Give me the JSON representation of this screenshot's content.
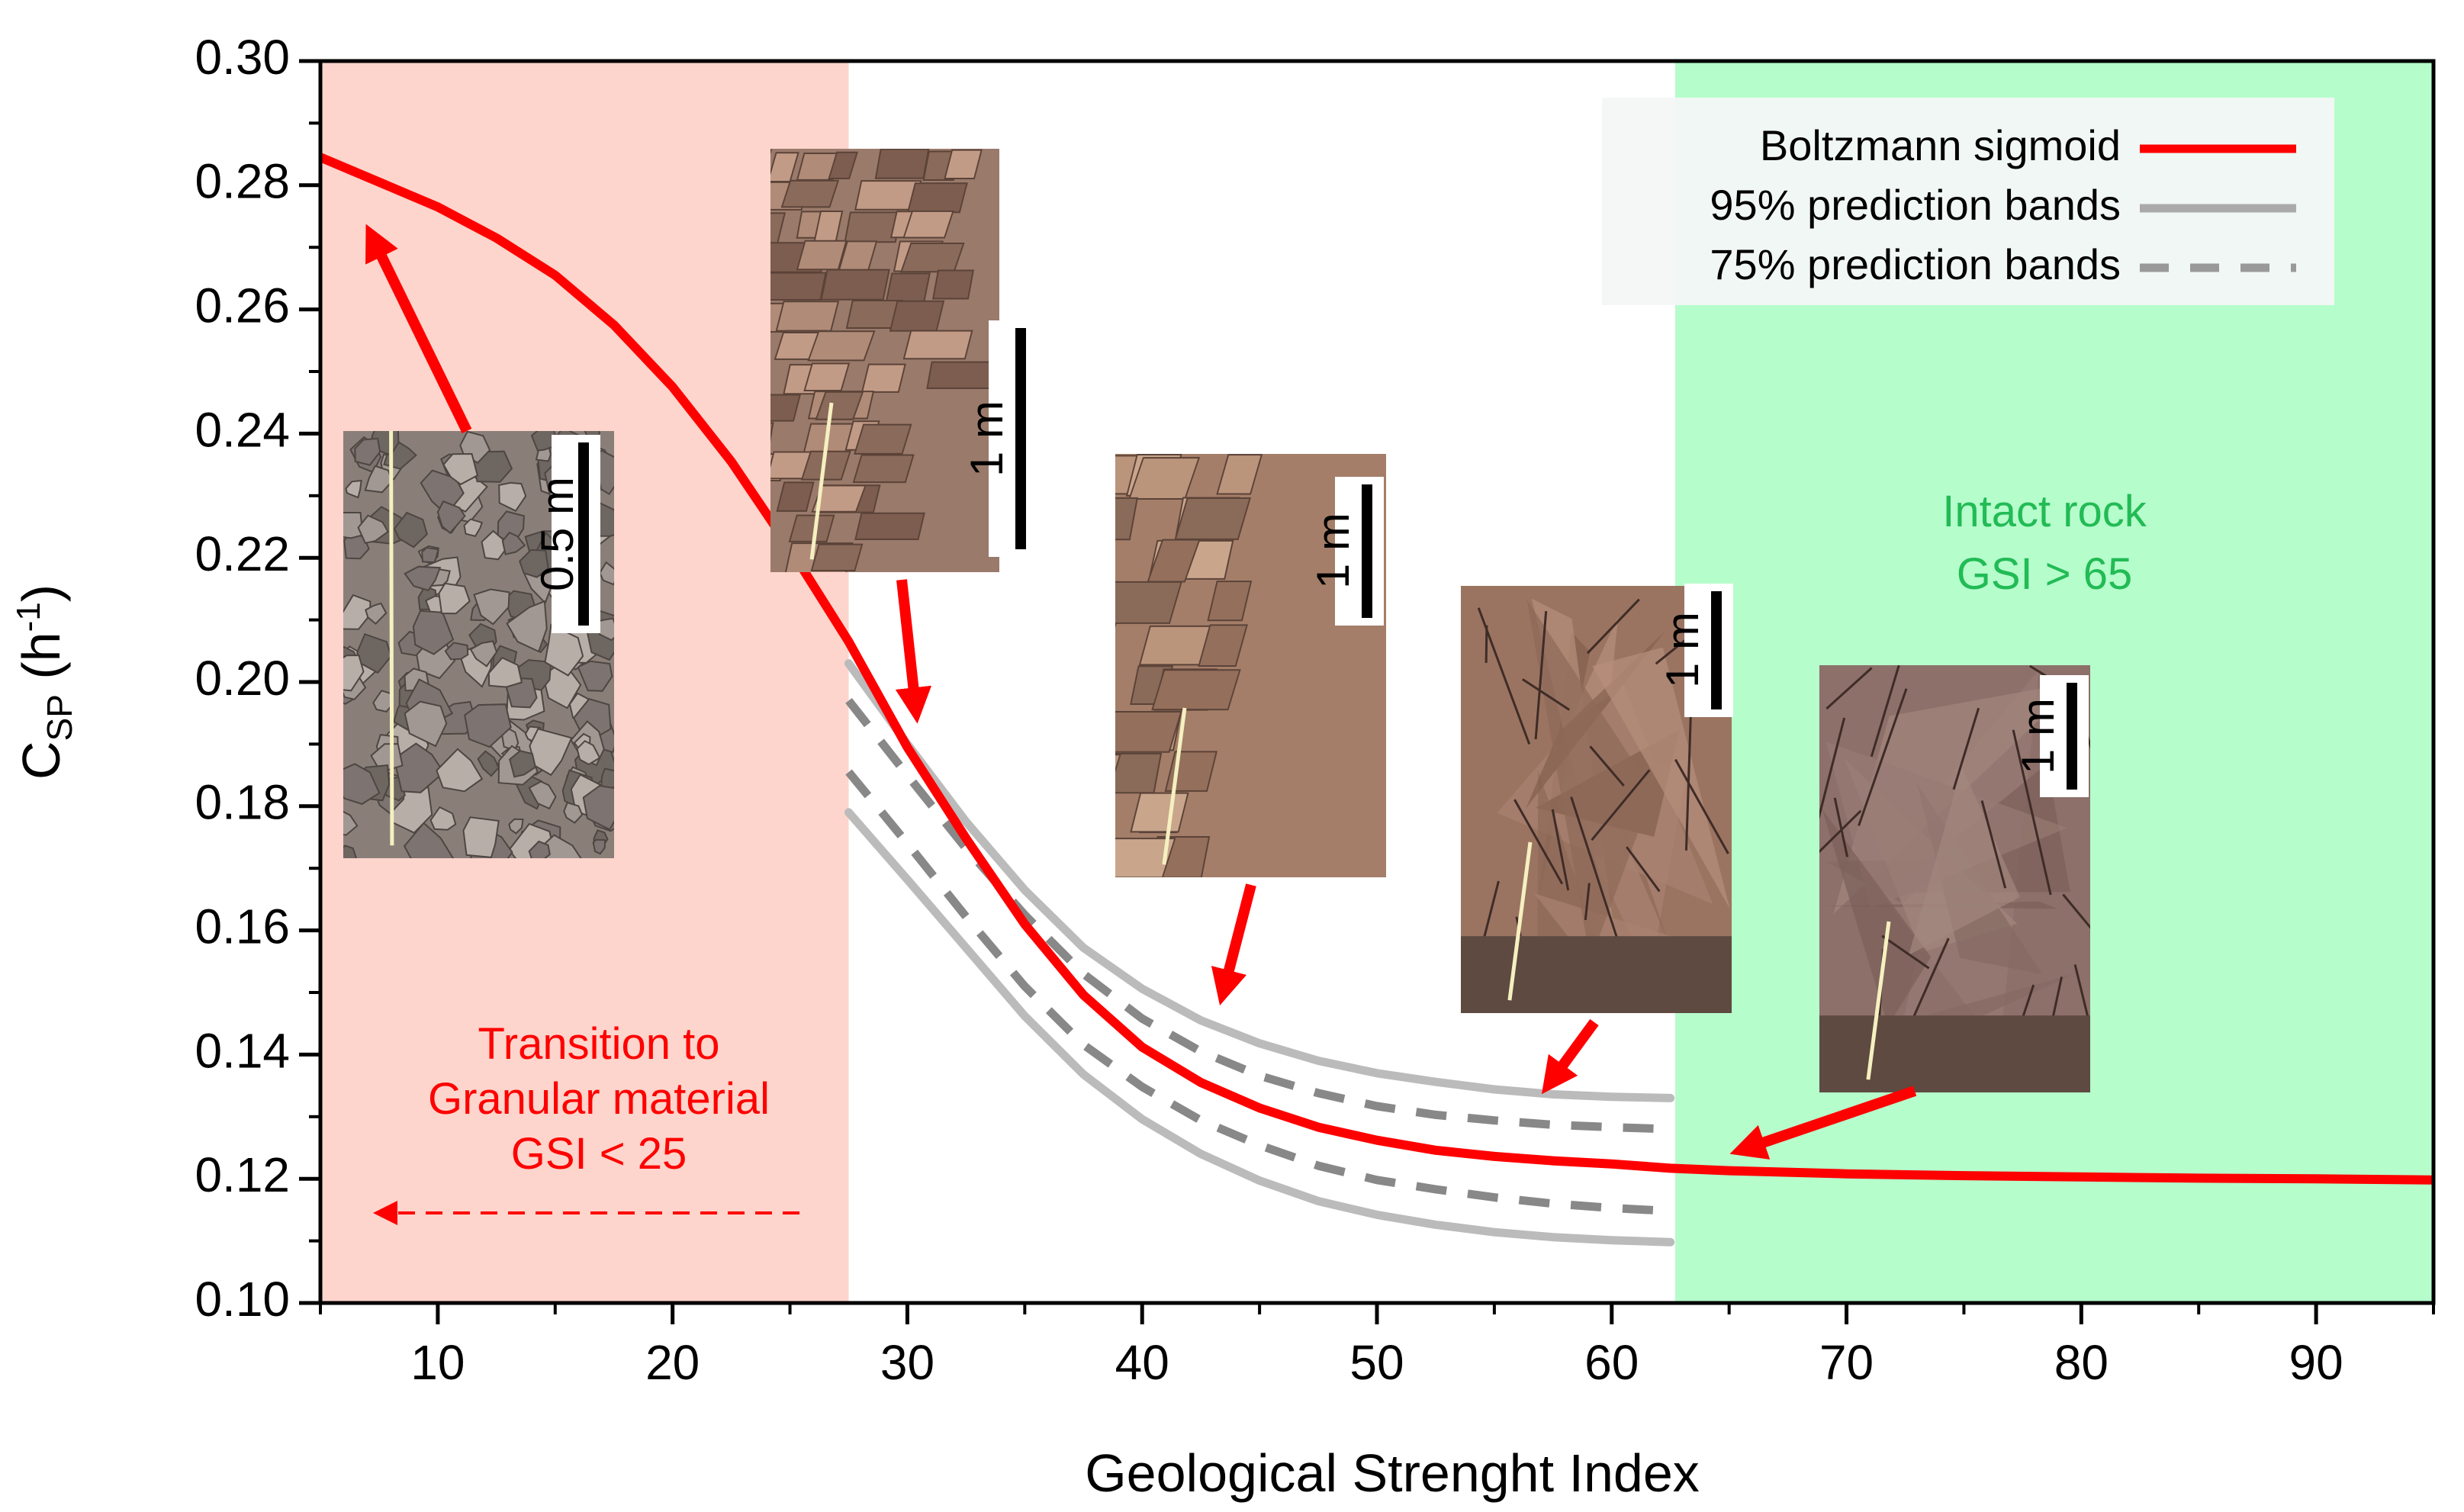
{
  "chart_data": {
    "type": "line",
    "xlabel": "Geological Strenght Index",
    "ylabel_main": "C",
    "ylabel_sub": "SP",
    "ylabel_unit_open": " (h",
    "ylabel_unit_sup": "-1",
    "ylabel_unit_close": ")",
    "xlim": [
      5,
      95
    ],
    "ylim": [
      0.1,
      0.3
    ],
    "xticks": [
      10,
      20,
      30,
      40,
      50,
      60,
      70,
      80,
      90
    ],
    "yticks": [
      0.1,
      0.12,
      0.14,
      0.16,
      0.18,
      0.2,
      0.22,
      0.24,
      0.26,
      0.28,
      0.3
    ],
    "ytick_labels": [
      "0.10",
      "0.12",
      "0.14",
      "0.16",
      "0.18",
      "0.20",
      "0.22",
      "0.24",
      "0.26",
      "0.28",
      "0.30"
    ],
    "regions": [
      {
        "name": "granular",
        "x_from": 5,
        "x_to": 27.5,
        "color": "#fdd5cc"
      },
      {
        "name": "intact",
        "x_from": 62.7,
        "x_to": 95,
        "color": "#b6fdcc"
      }
    ],
    "series": [
      {
        "name": "Boltzmann sigmoid",
        "style": "solid",
        "color": "#ff0000",
        "x": [
          5,
          7.5,
          10,
          12.5,
          15,
          17.5,
          20,
          22.5,
          25,
          27.5,
          30,
          32.5,
          35,
          37.5,
          40,
          42.5,
          45,
          47.5,
          50,
          52.5,
          55,
          57.5,
          60,
          62.5,
          65,
          70,
          75,
          80,
          85,
          90,
          95
        ],
        "values": [
          0.2845,
          0.2805,
          0.2765,
          0.2715,
          0.2655,
          0.2575,
          0.2475,
          0.2355,
          0.2215,
          0.2065,
          0.1895,
          0.1748,
          0.161,
          0.1496,
          0.1412,
          0.1355,
          0.1314,
          0.1283,
          0.1262,
          0.1246,
          0.1236,
          0.1229,
          0.1224,
          0.1217,
          0.1213,
          0.1208,
          0.1205,
          0.1203,
          0.1201,
          0.12,
          0.1198
        ]
      },
      {
        "name": "95% prediction bands upper",
        "style": "solid",
        "color": "#bbbbbb",
        "x": [
          27.5,
          30,
          32.5,
          35,
          37.5,
          40,
          42.5,
          45,
          47.5,
          50,
          52.5,
          55,
          57.5,
          60,
          62.5
        ],
        "values": [
          0.203,
          0.19,
          0.1775,
          0.1665,
          0.1572,
          0.1506,
          0.1455,
          0.1418,
          0.139,
          0.137,
          0.1356,
          0.1344,
          0.1336,
          0.1332,
          0.133
        ]
      },
      {
        "name": "75% prediction bands upper",
        "style": "dashed",
        "color": "#888888",
        "x": [
          27.5,
          30,
          32.5,
          35,
          37.5,
          40,
          42.5,
          45,
          47.5,
          50,
          52.5,
          55,
          57.5,
          60,
          62.5
        ],
        "values": [
          0.197,
          0.185,
          0.1732,
          0.1625,
          0.153,
          0.1458,
          0.1405,
          0.1366,
          0.1338,
          0.1317,
          0.1303,
          0.1294,
          0.1287,
          0.1283,
          0.128
        ]
      },
      {
        "name": "75% prediction bands lower",
        "style": "dashed",
        "color": "#888888",
        "x": [
          27.5,
          30,
          32.5,
          35,
          37.5,
          40,
          42.5,
          45,
          47.5,
          50,
          52.5,
          55,
          57.5,
          60,
          62.5
        ],
        "values": [
          0.1855,
          0.174,
          0.1622,
          0.151,
          0.1416,
          0.1348,
          0.1294,
          0.1254,
          0.1221,
          0.1198,
          0.1183,
          0.117,
          0.116,
          0.1153,
          0.1148
        ]
      },
      {
        "name": "95% prediction bands lower",
        "style": "solid",
        "color": "#bbbbbb",
        "x": [
          27.5,
          30,
          32.5,
          35,
          37.5,
          40,
          42.5,
          45,
          47.5,
          50,
          52.5,
          55,
          57.5,
          60,
          62.5
        ],
        "values": [
          0.179,
          0.1682,
          0.1572,
          0.1462,
          0.1368,
          0.1296,
          0.124,
          0.1197,
          0.1164,
          0.1142,
          0.1126,
          0.1114,
          0.1106,
          0.1101,
          0.1098
        ]
      }
    ],
    "legend": {
      "placement": "top-right",
      "entries": [
        {
          "label": "Boltzmann sigmoid",
          "color": "#ff0000",
          "style": "solid"
        },
        {
          "label": "95% prediction bands",
          "color": "#aaaaaa",
          "style": "solid"
        },
        {
          "label": "75% prediction bands",
          "color": "#999999",
          "style": "dashed"
        }
      ]
    },
    "annotations": {
      "granular_lines": [
        "Transition to",
        "Granular material",
        "GSI < 25"
      ],
      "granular_color": "#ff0000",
      "intact_lines": [
        "Intact rock",
        "GSI > 65"
      ],
      "intact_color": "#22bb55"
    },
    "photos": [
      {
        "name": "photo-granular",
        "scale_label": "0.5 m"
      },
      {
        "name": "photo-blocky",
        "scale_label": "1 m"
      },
      {
        "name": "photo-fractured",
        "scale_label": "1 m"
      },
      {
        "name": "photo-jointed",
        "scale_label": "1 m"
      },
      {
        "name": "photo-intact",
        "scale_label": "1 m"
      }
    ]
  }
}
